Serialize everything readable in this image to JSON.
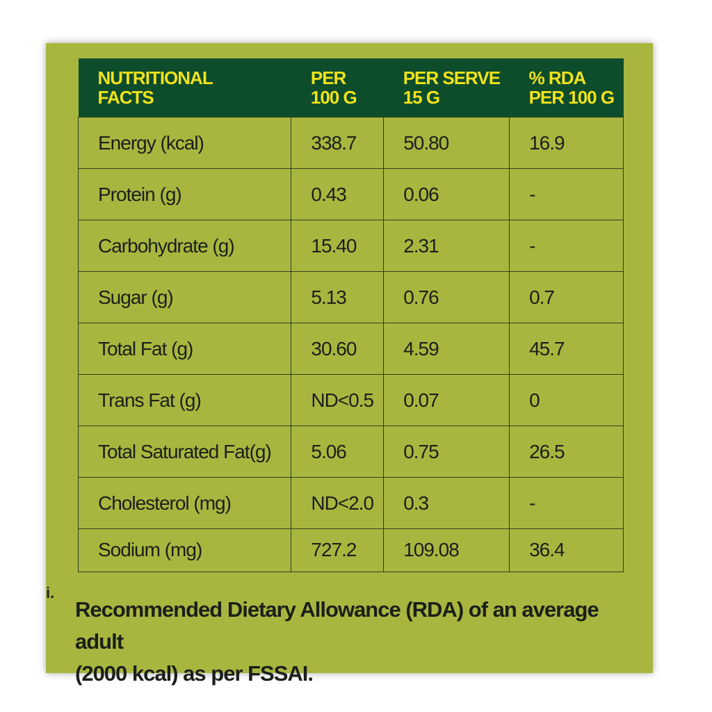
{
  "table": {
    "headers": [
      [
        "NUTRITIONAL",
        "FACTS"
      ],
      [
        "PER",
        "100 G"
      ],
      [
        "PER SERVE",
        "15 G"
      ],
      [
        "% RDA",
        "PER 100 G"
      ]
    ],
    "rows": [
      [
        "Energy (kcal)",
        "338.7",
        "50.80",
        "16.9"
      ],
      [
        "Protein (g)",
        "0.43",
        "0.06",
        "-"
      ],
      [
        "Carbohydrate (g)",
        "15.40",
        "2.31",
        "-"
      ],
      [
        "Sugar (g)",
        "5.13",
        "0.76",
        "0.7"
      ],
      [
        "Total Fat (g)",
        "30.60",
        "4.59",
        "45.7"
      ],
      [
        "Trans Fat (g)",
        "ND<0.5",
        "0.07",
        "0"
      ],
      [
        "Total Saturated Fat(g)",
        "5.06",
        "0.75",
        "26.5"
      ],
      [
        "Cholesterol (mg)",
        "ND<2.0",
        "0.3",
        "-"
      ],
      [
        "Sodium (mg)",
        "727.2",
        "109.08",
        "36.4"
      ]
    ]
  },
  "footnote": {
    "marker": "i.",
    "line1": "Recommended Dietary Allowance (RDA) of an average adult",
    "line2": "(2000 kcal) as per FSSAI."
  },
  "colors": {
    "panel_background": "#a8b63f",
    "header_background": "#0d4d2c",
    "header_text": "#f2e21a",
    "body_text": "#1b1f1a"
  }
}
